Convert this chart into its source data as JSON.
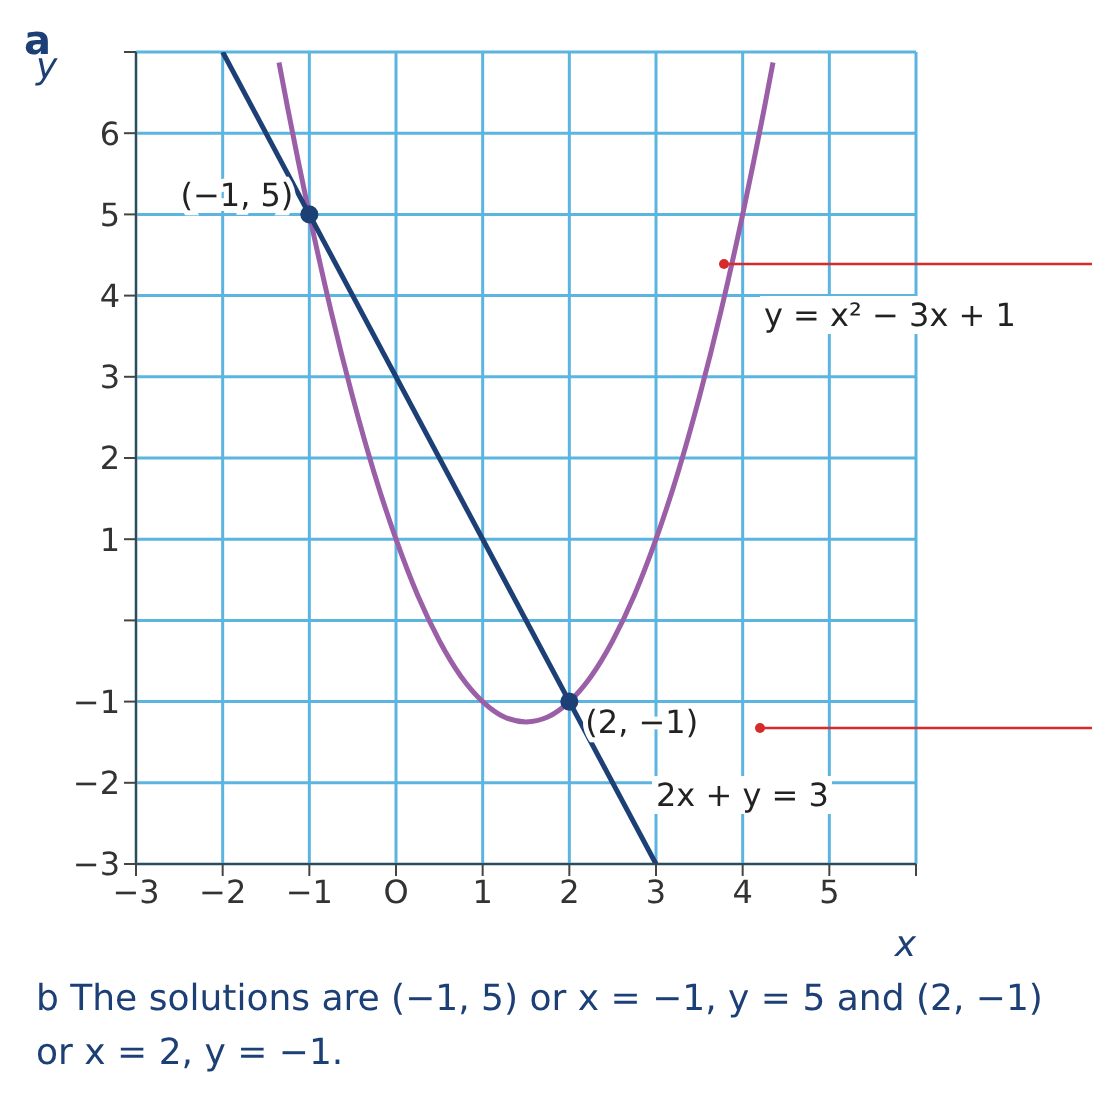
{
  "chart_data": {
    "type": "line",
    "xlabel": "x",
    "ylabel": "y",
    "xlim": [
      -3,
      6
    ],
    "ylim": [
      -3,
      7
    ],
    "xticks": [
      {
        "value": -3,
        "label": "−3"
      },
      {
        "value": -2,
        "label": "−2"
      },
      {
        "value": -1,
        "label": "−1"
      },
      {
        "value": 0,
        "label": "O"
      },
      1,
      2,
      3,
      4,
      5,
      {
        "value": 6,
        "label": null
      }
    ],
    "yticks": [
      {
        "value": -3,
        "label": "−3"
      },
      {
        "value": -2,
        "label": "−2"
      },
      {
        "value": -1,
        "label": "−1"
      },
      {
        "value": 0,
        "label": null
      },
      1,
      2,
      3,
      4,
      5,
      6,
      {
        "value": 7,
        "label": null
      }
    ],
    "grid": true,
    "marker": "none",
    "line_style": "solid",
    "series": [
      {
        "color": "#9b5fa8",
        "x": [
          -1.35,
          -1.25,
          -1,
          -0.75,
          -0.5,
          -0.25,
          0,
          0.25,
          0.5,
          0.75,
          1,
          1.25,
          1.5,
          1.75,
          2,
          2.25,
          2.5,
          2.75,
          3,
          3.25,
          3.5,
          3.75,
          4,
          4.25,
          4.35
        ],
        "values": [
          6.87,
          6.31,
          5,
          3.81,
          2.75,
          1.81,
          1,
          0.31,
          -0.25,
          -0.69,
          -1,
          -1.19,
          -1.25,
          -1.19,
          -1,
          -0.69,
          -0.25,
          0.31,
          1,
          1.81,
          2.75,
          3.81,
          5,
          6.31,
          6.87
        ]
      },
      {
        "color": "#1c3f75",
        "x": [
          -2,
          3
        ],
        "values": [
          7,
          -3
        ]
      },
      {
        "type": "scatter",
        "color": "#1c3f75",
        "marker": "circle",
        "x": [
          -1,
          2
        ],
        "values": [
          5,
          -1
        ]
      }
    ],
    "annotations": [
      "a",
      {
        "text": "(−1, 5)",
        "x": -1,
        "y": 5
      },
      {
        "text": "(2, −1)",
        "x": 2,
        "y": -1
      },
      "y = x² − 3x + 1",
      "2x + y = 3",
      "b The solutions are (−1, 5) or x = −1, y = 5 and (2, −1) or x = 2, y = −1."
    ]
  }
}
